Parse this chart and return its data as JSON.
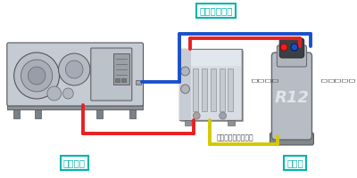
{
  "bg_color": "#ffffff",
  "teal": "#00b4aa",
  "red": "#e82020",
  "blue": "#1a50cc",
  "yellow": "#d4c800",
  "dark_gray": "#444444",
  "mid_gray": "#888888",
  "light_gray": "#c8cdd5",
  "machine_body": "#d0d5dc",
  "cyl_silver": "#b0b5bc",
  "cyl_top_dark": "#404548",
  "label_system": "システム",
  "label_bombe": "ボンベ",
  "label_recovery": "フロン回収機",
  "label_safety": "セーフティケーブル",
  "label_liquid_valve": "液\nバ\nル\nブ",
  "label_gas_valve": "ガ\nス\nバ\nル\nブ",
  "label_r12": "R12",
  "pipe_lw": 2.8,
  "corner_r": 10
}
